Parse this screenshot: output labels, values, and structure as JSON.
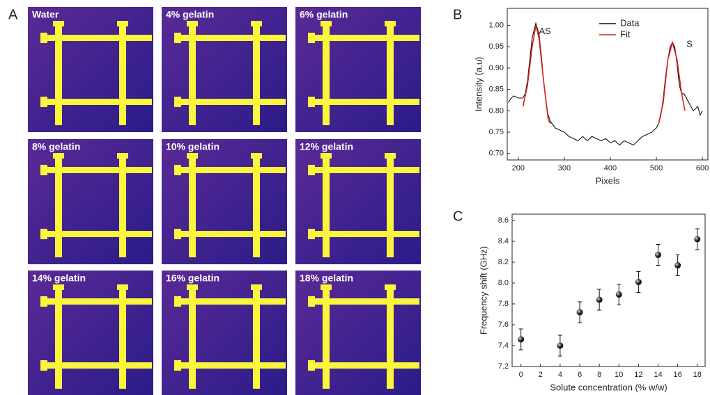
{
  "panel_a": {
    "label": "A",
    "images": [
      "Water",
      "4% gelatin",
      "6% gelatin",
      "8% gelatin",
      "10% gelatin",
      "12% gelatin",
      "14% gelatin",
      "16% gelatin",
      "18% gelatin"
    ]
  },
  "chart_data": [
    {
      "type": "line",
      "label": "B",
      "x_label": "Pixels",
      "y_label": "Intensity (a.u)",
      "xlim": [
        176,
        612
      ],
      "ylim": [
        0.685,
        1.04
      ],
      "xticks": [
        200,
        300,
        400,
        500,
        600
      ],
      "yticks": [
        {
          "value": 0.7,
          "label": "0.70"
        },
        {
          "value": 0.75,
          "label": "0.75"
        },
        {
          "value": 0.8,
          "label": "0.80"
        },
        {
          "value": 0.85,
          "label": "0.85"
        },
        {
          "value": 0.9,
          "label": "0.90"
        },
        {
          "value": 0.95,
          "label": "0.95"
        },
        {
          "value": 1.0,
          "label": "1.00"
        }
      ],
      "series": [
        {
          "name": "Data",
          "color": "#111111",
          "x": [
            178,
            185,
            190,
            200,
            210,
            215,
            220,
            225,
            230,
            238,
            245,
            250,
            255,
            260,
            265,
            270,
            280,
            290,
            300,
            310,
            320,
            330,
            340,
            350,
            360,
            370,
            380,
            390,
            400,
            410,
            420,
            430,
            440,
            450,
            460,
            470,
            480,
            490,
            500,
            505,
            510,
            515,
            520,
            525,
            530,
            535,
            540,
            545,
            550,
            555,
            560,
            570,
            580,
            590,
            595,
            600
          ],
          "values": [
            0.82,
            0.83,
            0.835,
            0.83,
            0.83,
            0.84,
            0.87,
            0.92,
            0.97,
            1.005,
            0.98,
            0.93,
            0.87,
            0.82,
            0.79,
            0.775,
            0.76,
            0.755,
            0.75,
            0.74,
            0.735,
            0.73,
            0.74,
            0.73,
            0.74,
            0.735,
            0.73,
            0.735,
            0.725,
            0.73,
            0.72,
            0.73,
            0.725,
            0.72,
            0.73,
            0.74,
            0.745,
            0.75,
            0.76,
            0.77,
            0.79,
            0.83,
            0.88,
            0.92,
            0.95,
            0.96,
            0.95,
            0.91,
            0.86,
            0.84,
            0.84,
            0.82,
            0.8,
            0.81,
            0.79,
            0.8
          ]
        },
        {
          "name": "Fit",
          "color": "#d62020",
          "x": [
            210,
            220,
            230,
            238,
            245,
            255,
            265,
            270,
            null,
            505,
            515,
            525,
            535,
            545,
            555,
            562
          ],
          "values": [
            0.81,
            0.86,
            0.95,
            1.0,
            0.97,
            0.87,
            0.78,
            0.77,
            null,
            0.77,
            0.82,
            0.92,
            0.96,
            0.92,
            0.84,
            0.8
          ]
        }
      ],
      "annotations": [
        {
          "text": "AS",
          "x": 258,
          "y": 0.985
        },
        {
          "text": "S",
          "x": 572,
          "y": 0.955
        }
      ]
    },
    {
      "type": "scatter",
      "label": "C",
      "x_label": "Solute concentration (% w/w)",
      "y_label": "Frequency shift (GHz)",
      "xlim": [
        -0.9,
        18.8
      ],
      "ylim": [
        7.2,
        8.66
      ],
      "xticks": [
        0,
        2,
        4,
        6,
        8,
        10,
        12,
        14,
        16,
        18
      ],
      "yticks": [
        7.2,
        7.4,
        7.6,
        7.8,
        {
          "value": 8.0,
          "label": "8.0"
        },
        8.2,
        8.4,
        8.6
      ],
      "color": "#111111",
      "x": [
        0,
        4,
        6,
        8,
        10,
        12,
        14,
        16,
        18
      ],
      "values": [
        7.46,
        7.4,
        7.72,
        7.84,
        7.89,
        8.01,
        8.27,
        8.17,
        8.42
      ],
      "errors": [
        0.1,
        0.1,
        0.1,
        0.1,
        0.1,
        0.1,
        0.1,
        0.1,
        0.1
      ]
    }
  ]
}
